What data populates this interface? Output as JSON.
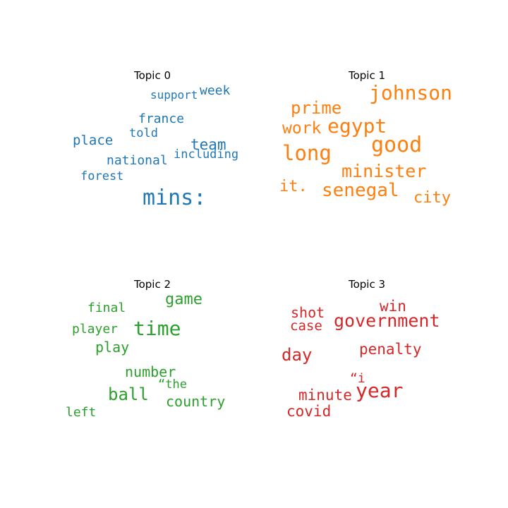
{
  "chart_data": {
    "type": "wordcloud",
    "panels": [
      {
        "title": "Topic 0",
        "color": "#1f77b4",
        "words": [
          {
            "text": "support",
            "weight": 16
          },
          {
            "text": "week",
            "weight": 18
          },
          {
            "text": "france",
            "weight": 18
          },
          {
            "text": "told",
            "weight": 17
          },
          {
            "text": "place",
            "weight": 19
          },
          {
            "text": "team",
            "weight": 21
          },
          {
            "text": "including",
            "weight": 17
          },
          {
            "text": "national",
            "weight": 18
          },
          {
            "text": "forest",
            "weight": 17
          },
          {
            "text": "mins:",
            "weight": 30
          }
        ]
      },
      {
        "title": "Topic 1",
        "color": "#ff7f0e",
        "words": [
          {
            "text": "johnson",
            "weight": 28
          },
          {
            "text": "prime",
            "weight": 24
          },
          {
            "text": "work",
            "weight": 23
          },
          {
            "text": "egypt",
            "weight": 28
          },
          {
            "text": "good",
            "weight": 30
          },
          {
            "text": "long",
            "weight": 29
          },
          {
            "text": "minister",
            "weight": 25
          },
          {
            "text": "it.",
            "weight": 22
          },
          {
            "text": "senegal",
            "weight": 26
          },
          {
            "text": "city",
            "weight": 22
          }
        ]
      },
      {
        "title": "Topic 2",
        "color": "#2ca02c",
        "words": [
          {
            "text": "game",
            "weight": 22
          },
          {
            "text": "final",
            "weight": 18
          },
          {
            "text": "player",
            "weight": 18
          },
          {
            "text": "time",
            "weight": 28
          },
          {
            "text": "play",
            "weight": 20
          },
          {
            "text": "number",
            "weight": 20
          },
          {
            "text": "“the",
            "weight": 17
          },
          {
            "text": "ball",
            "weight": 24
          },
          {
            "text": "country",
            "weight": 20
          },
          {
            "text": "left",
            "weight": 18
          }
        ]
      },
      {
        "title": "Topic 3",
        "color": "#d62728",
        "words": [
          {
            "text": "win",
            "weight": 21
          },
          {
            "text": "shot",
            "weight": 20
          },
          {
            "text": "case",
            "weight": 19
          },
          {
            "text": "government",
            "weight": 25
          },
          {
            "text": "day",
            "weight": 24
          },
          {
            "text": "penalty",
            "weight": 21
          },
          {
            "text": "“i",
            "weight": 18
          },
          {
            "text": "minute",
            "weight": 21
          },
          {
            "text": "year",
            "weight": 28
          },
          {
            "text": "covid",
            "weight": 21
          }
        ]
      }
    ]
  }
}
